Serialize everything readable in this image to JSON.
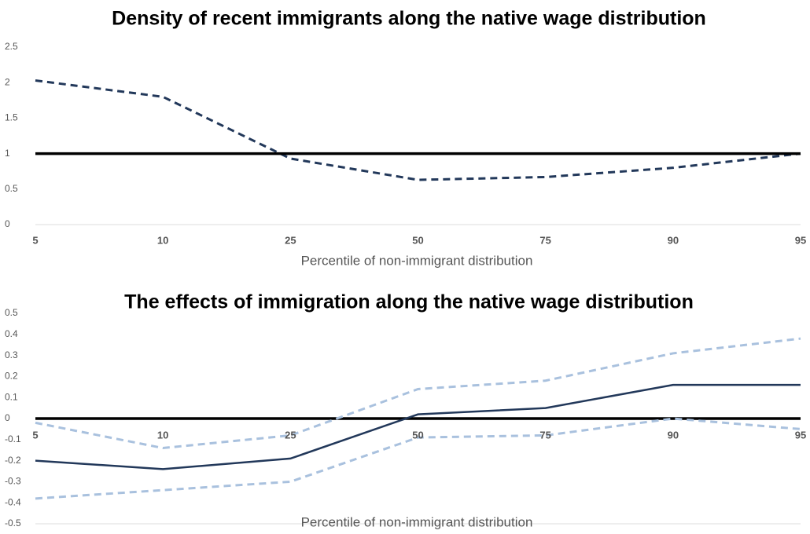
{
  "chart_data": [
    {
      "type": "line",
      "title": "Density of recent immigrants along the native wage distribution",
      "x_label": "Percentile of non-immigrant distribution",
      "categories": [
        "5",
        "10",
        "25",
        "50",
        "75",
        "90",
        "95"
      ],
      "series": [
        {
          "color": "#22385a",
          "dash": true,
          "values": [
            2.03,
            1.8,
            0.93,
            0.63,
            0.67,
            0.8,
            1.0
          ]
        },
        {
          "color": "#000000",
          "dash": false,
          "values": [
            1,
            1,
            1,
            1,
            1,
            1,
            1
          ]
        }
      ],
      "ylim": [
        0,
        2.5
      ],
      "yticks": [
        0,
        0.5,
        1,
        1.5,
        2,
        2.5
      ]
    },
    {
      "type": "line",
      "title": "The effects of immigration along the native wage distribution",
      "x_label": "Percentile of non-immigrant distribution",
      "categories": [
        "5",
        "10",
        "25",
        "50",
        "75",
        "90",
        "95"
      ],
      "series": [
        {
          "color": "#000000",
          "dash": false,
          "values": [
            0,
            0,
            0,
            0,
            0,
            0,
            0
          ]
        },
        {
          "color": "#a9c1de",
          "dash": true,
          "values": [
            -0.02,
            -0.14,
            -0.08,
            0.14,
            0.18,
            0.31,
            0.38
          ]
        },
        {
          "color": "#a9c1de",
          "dash": true,
          "values": [
            -0.38,
            -0.34,
            -0.3,
            -0.09,
            -0.08,
            0.0,
            -0.05
          ]
        },
        {
          "color": "#22385a",
          "dash": false,
          "values": [
            -0.2,
            -0.24,
            -0.19,
            0.02,
            0.05,
            0.16,
            0.16
          ]
        }
      ],
      "ylim": [
        -0.5,
        0.5
      ],
      "yticks": [
        -0.5,
        -0.4,
        -0.3,
        -0.2,
        -0.1,
        0,
        0.1,
        0.2,
        0.3,
        0.4,
        0.5
      ]
    }
  ]
}
